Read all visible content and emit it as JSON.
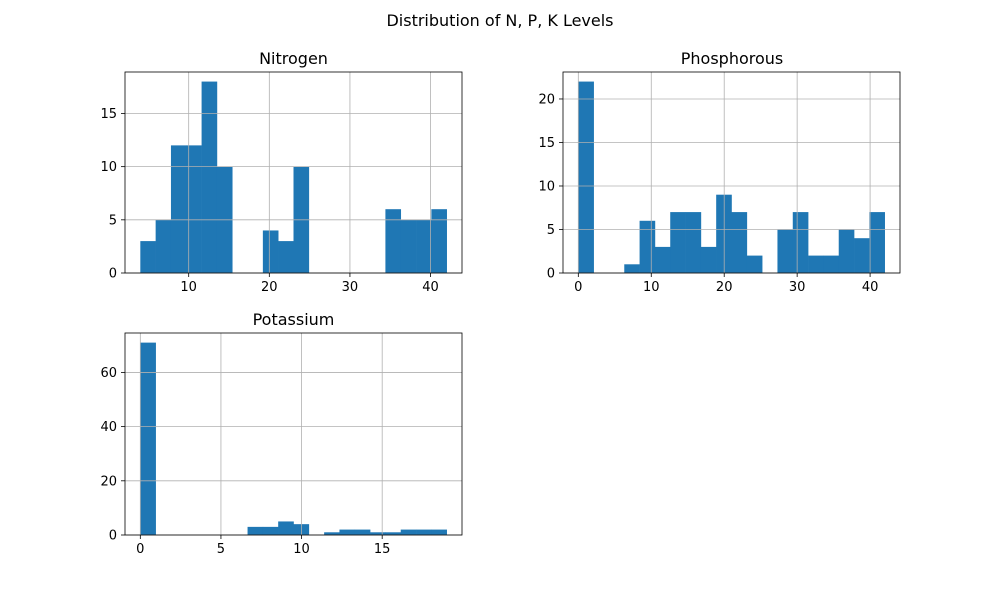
{
  "figure": {
    "title": "Distribution of N, P, K Levels",
    "bar_color": "#1f77b4",
    "grid_color": "#b0b0b0"
  },
  "chart_data": [
    {
      "type": "bar",
      "subtype": "histogram",
      "title": "Nitrogen",
      "xlabel": "",
      "ylabel": "",
      "grid": true,
      "xlim": [
        2.1,
        43.9
      ],
      "ylim": [
        0,
        18.9
      ],
      "xticks": [
        10,
        20,
        30,
        40
      ],
      "yticks": [
        0,
        5,
        10,
        15
      ],
      "bin_start": 4,
      "bin_width": 1.9,
      "counts": [
        3,
        5,
        12,
        12,
        18,
        10,
        0,
        0,
        4,
        3,
        10,
        0,
        0,
        0,
        0,
        0,
        6,
        5,
        5,
        6
      ]
    },
    {
      "type": "bar",
      "subtype": "histogram",
      "title": "Phosphorous",
      "xlabel": "",
      "ylabel": "",
      "grid": true,
      "xlim": [
        -2.1,
        44.1
      ],
      "ylim": [
        0,
        23.1
      ],
      "xticks": [
        0,
        10,
        20,
        30,
        40
      ],
      "yticks": [
        0,
        5,
        10,
        15,
        20
      ],
      "bin_start": 0,
      "bin_width": 2.1,
      "counts": [
        22,
        0,
        0,
        1,
        6,
        3,
        7,
        7,
        3,
        9,
        7,
        2,
        0,
        5,
        7,
        2,
        2,
        5,
        4,
        7
      ]
    },
    {
      "type": "bar",
      "subtype": "histogram",
      "title": "Potassium",
      "xlabel": "",
      "ylabel": "",
      "grid": true,
      "xlim": [
        -0.95,
        19.95
      ],
      "ylim": [
        0,
        74.55
      ],
      "xticks": [
        0,
        5,
        10,
        15
      ],
      "yticks": [
        0,
        20,
        40,
        60
      ],
      "bin_start": 0,
      "bin_width": 0.95,
      "counts": [
        71,
        0,
        0,
        0,
        0,
        0,
        0,
        3,
        3,
        5,
        4,
        0,
        1,
        2,
        2,
        1,
        1,
        2,
        2,
        2
      ]
    }
  ]
}
